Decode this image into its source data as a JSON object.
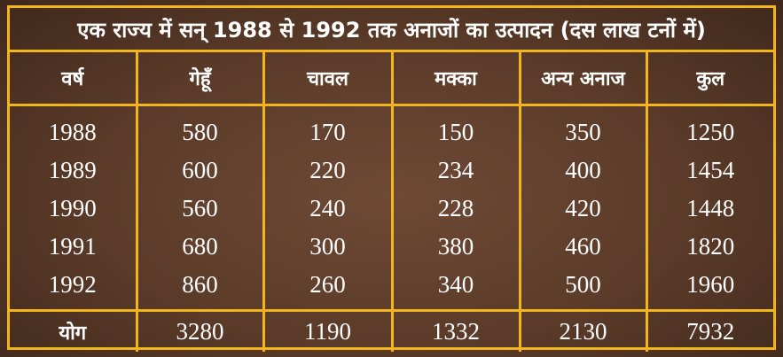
{
  "chart_data": {
    "type": "table",
    "title": "एक राज्य में सन् 1988 से 1992 तक अनाजों का उत्पादन (दस लाख टनों में)",
    "columns": [
      "वर्ष",
      "गेहूँ",
      "चावल",
      "मक्का",
      "अन्य अनाज",
      "कुल"
    ],
    "rows": [
      [
        "1988",
        "580",
        "170",
        "150",
        "350",
        "1250"
      ],
      [
        "1989",
        "600",
        "220",
        "234",
        "400",
        "1454"
      ],
      [
        "1990",
        "560",
        "240",
        "228",
        "420",
        "1448"
      ],
      [
        "1991",
        "680",
        "300",
        "380",
        "460",
        "1820"
      ],
      [
        "1992",
        "860",
        "260",
        "340",
        "500",
        "1960"
      ]
    ],
    "total_row": [
      "योग",
      "3280",
      "1190",
      "1332",
      "2130",
      "7932"
    ]
  },
  "colors": {
    "border": "#f2b51c",
    "background": "#5a3a28",
    "text": "#ffffff"
  }
}
